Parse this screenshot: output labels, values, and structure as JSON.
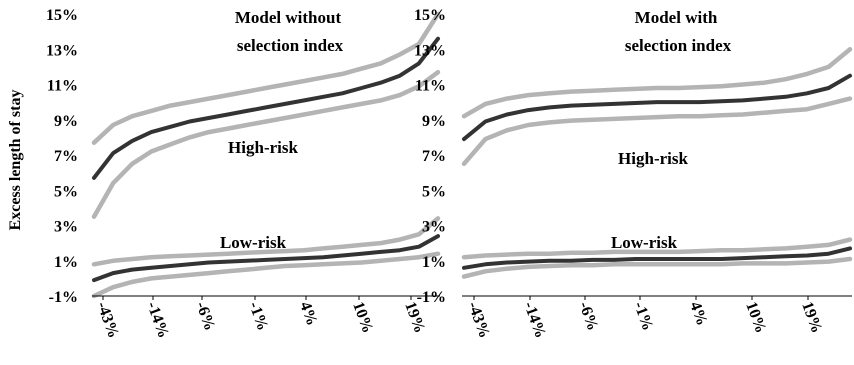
{
  "chart_data": [
    {
      "type": "line",
      "title_lines": [
        "Model without",
        "selection index"
      ],
      "ylabel": "Excess length of stay",
      "ylim": [
        -1,
        15
      ],
      "yticks": [
        "15%",
        "13%",
        "11%",
        "9%",
        "7%",
        "5%",
        "3%",
        "1%",
        "-1%"
      ],
      "xticks": [
        "-43%",
        "-14%",
        "-6%",
        "-1%",
        "4%",
        "10%",
        "19%"
      ],
      "annotations": [
        "High-risk",
        "Low-risk"
      ],
      "colors": {
        "estimate": "#333333",
        "interval": "#b4b4b4"
      },
      "series": [
        {
          "group": "high-risk",
          "kind": "estimate",
          "values": [
            5.7,
            7.1,
            7.8,
            8.3,
            8.6,
            8.9,
            9.1,
            9.3,
            9.5,
            9.7,
            9.9,
            10.1,
            10.3,
            10.5,
            10.8,
            11.1,
            11.5,
            12.2,
            13.6
          ]
        },
        {
          "group": "high-risk",
          "kind": "upper",
          "values": [
            7.7,
            8.7,
            9.2,
            9.5,
            9.8,
            10.0,
            10.2,
            10.4,
            10.6,
            10.8,
            11.0,
            11.2,
            11.4,
            11.6,
            11.9,
            12.2,
            12.7,
            13.3,
            15.0
          ]
        },
        {
          "group": "high-risk",
          "kind": "lower",
          "values": [
            3.5,
            5.4,
            6.5,
            7.2,
            7.6,
            8.0,
            8.3,
            8.5,
            8.7,
            8.9,
            9.1,
            9.3,
            9.5,
            9.7,
            9.9,
            10.1,
            10.4,
            10.9,
            11.7
          ]
        },
        {
          "group": "low-risk",
          "kind": "estimate",
          "values": [
            -0.1,
            0.3,
            0.5,
            0.6,
            0.7,
            0.8,
            0.9,
            0.95,
            1.0,
            1.05,
            1.1,
            1.15,
            1.2,
            1.3,
            1.4,
            1.5,
            1.6,
            1.8,
            2.4
          ]
        },
        {
          "group": "low-risk",
          "kind": "upper",
          "values": [
            0.8,
            1.0,
            1.1,
            1.2,
            1.25,
            1.3,
            1.35,
            1.4,
            1.45,
            1.5,
            1.55,
            1.6,
            1.7,
            1.8,
            1.9,
            2.0,
            2.2,
            2.5,
            3.4
          ]
        },
        {
          "group": "low-risk",
          "kind": "lower",
          "values": [
            -1.0,
            -0.5,
            -0.2,
            0.0,
            0.1,
            0.2,
            0.3,
            0.4,
            0.5,
            0.6,
            0.7,
            0.75,
            0.8,
            0.85,
            0.9,
            1.0,
            1.1,
            1.2,
            1.4
          ]
        }
      ]
    },
    {
      "type": "line",
      "title_lines": [
        "Model with",
        "selection index"
      ],
      "ylabel": "",
      "ylim": [
        -1,
        15
      ],
      "yticks": [
        "15%",
        "13%",
        "11%",
        "9%",
        "7%",
        "5%",
        "3%",
        "1%",
        "-1%"
      ],
      "xticks": [
        "-43%",
        "-14%",
        "-6%",
        "-1%",
        "4%",
        "10%",
        "19%"
      ],
      "annotations": [
        "High-risk",
        "Low-risk"
      ],
      "colors": {
        "estimate": "#333333",
        "interval": "#b4b4b4"
      },
      "series": [
        {
          "group": "high-risk",
          "kind": "estimate",
          "values": [
            7.9,
            8.9,
            9.3,
            9.55,
            9.7,
            9.8,
            9.85,
            9.9,
            9.95,
            10.0,
            10.0,
            10.0,
            10.05,
            10.1,
            10.2,
            10.3,
            10.5,
            10.8,
            11.5
          ]
        },
        {
          "group": "high-risk",
          "kind": "upper",
          "values": [
            9.2,
            9.9,
            10.2,
            10.4,
            10.5,
            10.6,
            10.65,
            10.7,
            10.75,
            10.8,
            10.8,
            10.85,
            10.9,
            11.0,
            11.1,
            11.3,
            11.6,
            12.0,
            13.0
          ]
        },
        {
          "group": "high-risk",
          "kind": "lower",
          "values": [
            6.5,
            7.9,
            8.4,
            8.7,
            8.85,
            8.95,
            9.0,
            9.05,
            9.1,
            9.15,
            9.2,
            9.2,
            9.25,
            9.3,
            9.4,
            9.5,
            9.6,
            9.9,
            10.2
          ]
        },
        {
          "group": "low-risk",
          "kind": "estimate",
          "values": [
            0.6,
            0.8,
            0.9,
            0.95,
            1.0,
            1.0,
            1.05,
            1.05,
            1.1,
            1.1,
            1.1,
            1.1,
            1.1,
            1.15,
            1.2,
            1.25,
            1.3,
            1.4,
            1.7
          ]
        },
        {
          "group": "low-risk",
          "kind": "upper",
          "values": [
            1.2,
            1.3,
            1.35,
            1.4,
            1.4,
            1.45,
            1.45,
            1.5,
            1.5,
            1.5,
            1.5,
            1.55,
            1.6,
            1.6,
            1.65,
            1.7,
            1.8,
            1.9,
            2.2
          ]
        },
        {
          "group": "low-risk",
          "kind": "lower",
          "values": [
            0.1,
            0.4,
            0.55,
            0.65,
            0.7,
            0.75,
            0.75,
            0.8,
            0.8,
            0.8,
            0.8,
            0.8,
            0.8,
            0.85,
            0.85,
            0.85,
            0.9,
            0.95,
            1.1
          ]
        }
      ]
    }
  ]
}
